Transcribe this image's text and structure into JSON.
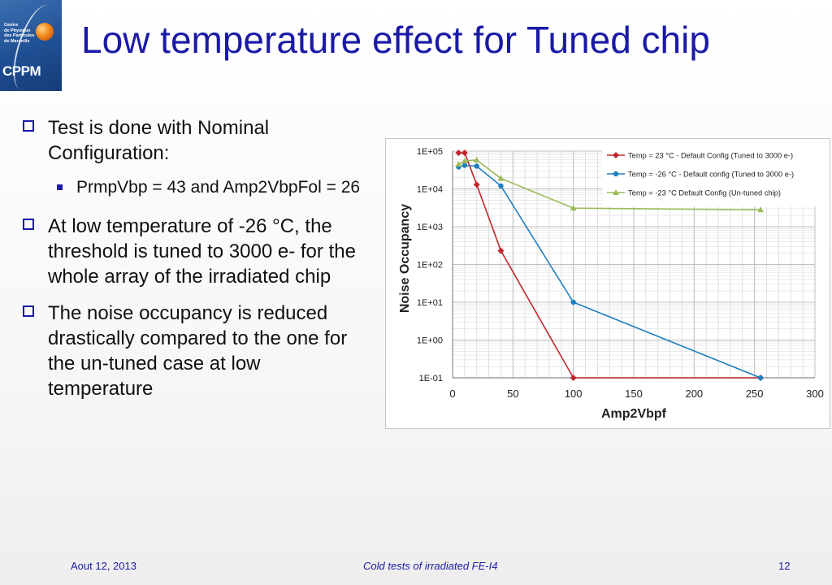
{
  "logo": {
    "lines": [
      "Centre",
      "de Physique",
      "des Particules",
      "de Marseille"
    ],
    "acronym": "CPPM"
  },
  "slide": {
    "title": "Low temperature effect for Tuned chip",
    "bullets": [
      "Test is done with Nominal Configuration:",
      "At low temperature of -26 °C, the threshold is tuned to 3000 e- for the whole array of the irradiated chip",
      "The noise occupancy is reduced drastically compared to the one for the un-tuned case at low temperature"
    ],
    "sub_bullet": "PrmpVbp = 43 and Amp2VbpFol = 26"
  },
  "footer": {
    "date": "Aout 12, 2013",
    "center": "Cold tests of irradiated FE-I4",
    "page": "12"
  },
  "chart_data": {
    "type": "line",
    "xlabel": "Amp2Vbpf",
    "ylabel": "Noise Occupancy",
    "yscale": "log",
    "xlim": [
      0,
      300
    ],
    "ylim": [
      0.1,
      100000
    ],
    "x_ticks": [
      "0",
      "50",
      "100",
      "150",
      "200",
      "250",
      "300"
    ],
    "y_ticks": [
      "1E+05",
      "1E+04",
      "1E+03",
      "1E+02",
      "1E+01",
      "1E+00",
      "1E-01"
    ],
    "grid": true,
    "legend_position": "top-right",
    "series": [
      {
        "name": "Temp = 23 °C -  Default Config (Tuned to 3000 e-)",
        "color": "#c0272d",
        "marker": "diamond",
        "points": [
          [
            5,
            90000
          ],
          [
            10,
            90000
          ],
          [
            20,
            13000
          ],
          [
            40,
            230
          ],
          [
            100,
            0.1
          ],
          [
            255,
            0.1
          ]
        ]
      },
      {
        "name": "Temp = -26 °C  -  Default config (Tuned to 3000 e-)",
        "color": "#1f7fc0",
        "marker": "circle",
        "points": [
          [
            5,
            38000
          ],
          [
            10,
            42000
          ],
          [
            20,
            40000
          ],
          [
            40,
            12000
          ],
          [
            100,
            10
          ],
          [
            255,
            0.1
          ]
        ]
      },
      {
        "name": "Temp = -23 °C  Default Config (Un-tuned chip)",
        "color": "#9bbb59",
        "marker": "triangle",
        "points": [
          [
            5,
            45000
          ],
          [
            10,
            55000
          ],
          [
            20,
            58000
          ],
          [
            40,
            19000
          ],
          [
            100,
            3100
          ],
          [
            255,
            2800
          ]
        ]
      }
    ]
  }
}
